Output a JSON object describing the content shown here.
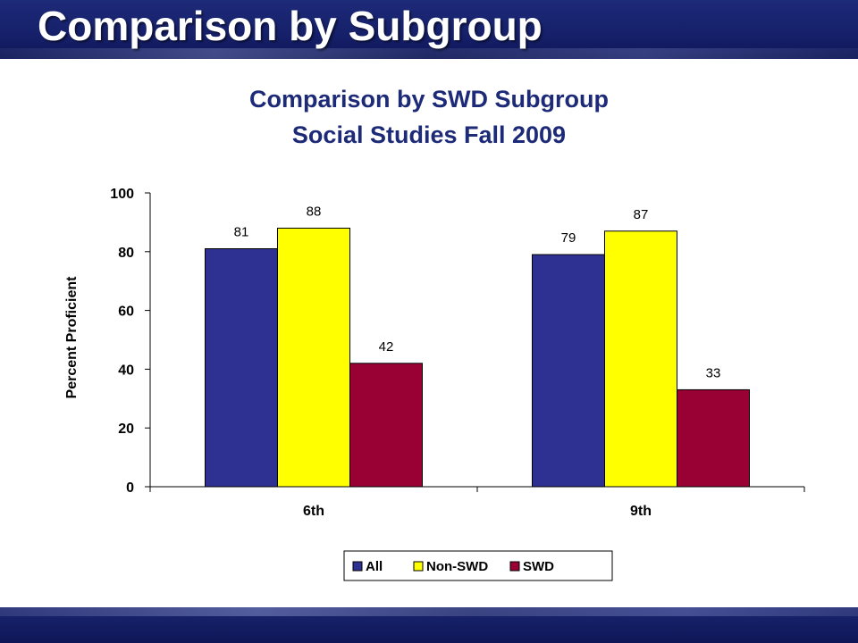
{
  "slide": {
    "title": "Comparison by Subgroup"
  },
  "chart_data": {
    "type": "bar",
    "title": "Comparison by SWD Subgroup",
    "subtitle": "Social Studies Fall 2009",
    "xlabel": "",
    "ylabel": "Percent Proficient",
    "ylim": [
      0,
      100
    ],
    "yticks": [
      0,
      20,
      40,
      60,
      80,
      100
    ],
    "categories": [
      "6th",
      "9th"
    ],
    "series": [
      {
        "name": "All",
        "values": [
          81,
          79
        ],
        "color": "#2e3192"
      },
      {
        "name": "Non-SWD",
        "values": [
          88,
          87
        ],
        "color": "#ffff00"
      },
      {
        "name": "SWD",
        "values": [
          42,
          33
        ],
        "color": "#990033"
      }
    ],
    "data_labels": true,
    "grid": false,
    "legend": "bottom"
  }
}
